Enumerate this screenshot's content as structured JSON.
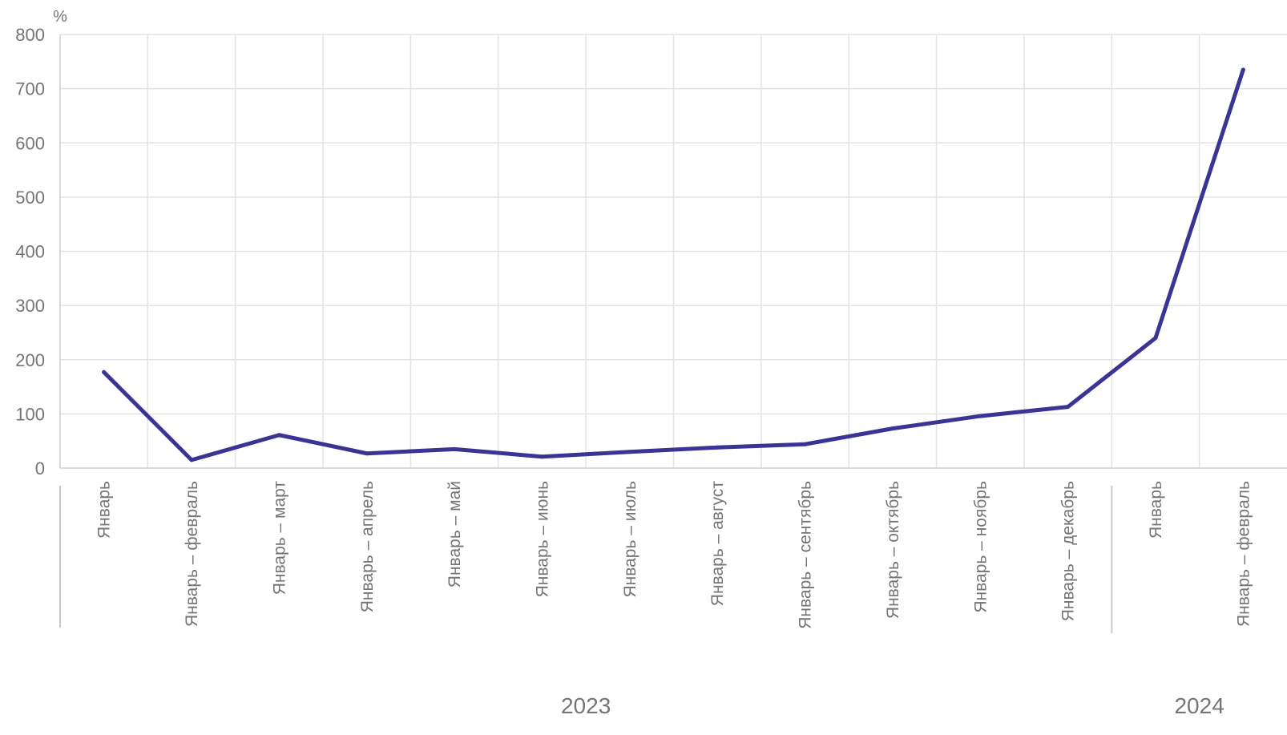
{
  "chart_data": {
    "type": "line",
    "title": "",
    "xlabel": "",
    "ylabel": "%",
    "ylim": [
      0,
      800
    ],
    "yticks": [
      0,
      100,
      200,
      300,
      400,
      500,
      600,
      700,
      800
    ],
    "grid": true,
    "categories": [
      "Январь",
      "Январь – февраль",
      "Январь – март",
      "Январь – апрель",
      "Январь – май",
      "Январь – июнь",
      "Январь – июль",
      "Январь – август",
      "Январь – сентябрь",
      "Январь – октябрь",
      "Январь – ноябрь",
      "Январь – декабрь",
      "Январь",
      "Январь – февраль"
    ],
    "groups": [
      {
        "label": "2023",
        "start": 0,
        "end": 11
      },
      {
        "label": "2024",
        "start": 12,
        "end": 13
      }
    ],
    "series": [
      {
        "color": "#3a3495",
        "values": [
          177,
          15,
          61,
          27,
          35,
          21,
          30,
          38,
          44,
          73,
          96,
          113,
          240,
          735
        ]
      }
    ]
  }
}
